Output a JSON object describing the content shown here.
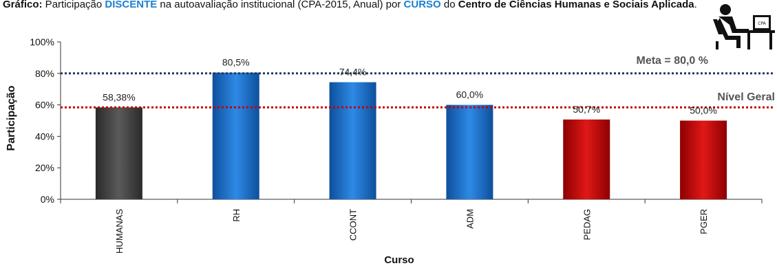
{
  "title": {
    "prefix": "Gráfico:",
    "p1": " Participação ",
    "hl1": "DISCENTE",
    "p2": " na autoavaliação institucional (CPA-2015, Anual) por ",
    "hl2": "CURSO",
    "p3": " do ",
    "bold_end": "Centro de Ciências Humanas e Sociais Aplicada",
    "end": "."
  },
  "colors": {
    "gray": "#474747",
    "blue": "#1a73d4",
    "red": "#d11111",
    "meta_line": "#1f3864",
    "nivel_line": "#c00000"
  },
  "icon": "person-at-computer-icon",
  "chart_data": {
    "type": "bar",
    "categories": [
      "HUMANAS",
      "RH",
      "CCONT",
      "ADM",
      "PEDAG",
      "PGER"
    ],
    "values": [
      58.38,
      80.5,
      74.4,
      60.0,
      50.7,
      50.0
    ],
    "data_labels": [
      "58,38%",
      "80,5%",
      "74,4%",
      "60,0%",
      "50,7%",
      "50,0%"
    ],
    "bar_colors": [
      "gray",
      "blue",
      "blue",
      "blue",
      "red",
      "red"
    ],
    "xlabel": "Curso",
    "ylabel": "Participação",
    "ylim": [
      0,
      100
    ],
    "yticks": [
      0,
      20,
      40,
      60,
      80,
      100
    ],
    "ytick_labels": [
      "0%",
      "20%",
      "40%",
      "60%",
      "80%",
      "100%"
    ],
    "reference_lines": [
      {
        "label": "Meta = 80,0 %",
        "value": 80,
        "color": "meta_line"
      },
      {
        "label": "Nível Geral",
        "value": 58.38,
        "color": "nivel_line"
      }
    ]
  }
}
